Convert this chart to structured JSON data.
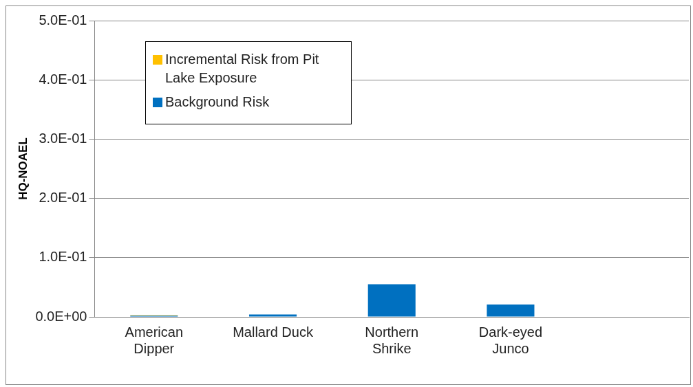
{
  "chart_data": {
    "type": "bar",
    "stacked": true,
    "ylabel": "HQ-NOAEL",
    "categories": [
      "American Dipper",
      "Mallard Duck",
      "Northern Shrike",
      "Dark-eyed Junco",
      null
    ],
    "series": [
      {
        "name": "Background Risk",
        "color": "#0070c0",
        "values": [
          0.002,
          0.004,
          0.055,
          0.021,
          null
        ]
      },
      {
        "name": "Incremental Risk from Pit Lake Exposure",
        "color": "#ffc000",
        "values": [
          0.001,
          0,
          0,
          0,
          null
        ]
      }
    ],
    "ylim": [
      0,
      0.5
    ],
    "yticks": [
      {
        "value": 0,
        "label": "0.0E+00"
      },
      {
        "value": 0.1,
        "label": "1.0E-01"
      },
      {
        "value": 0.2,
        "label": "2.0E-01"
      },
      {
        "value": 0.3,
        "label": "3.0E-01"
      },
      {
        "value": 0.4,
        "label": "4.0E-01"
      },
      {
        "value": 0.5,
        "label": "5.0E-01"
      }
    ],
    "grid": "y",
    "legend": "top left"
  }
}
